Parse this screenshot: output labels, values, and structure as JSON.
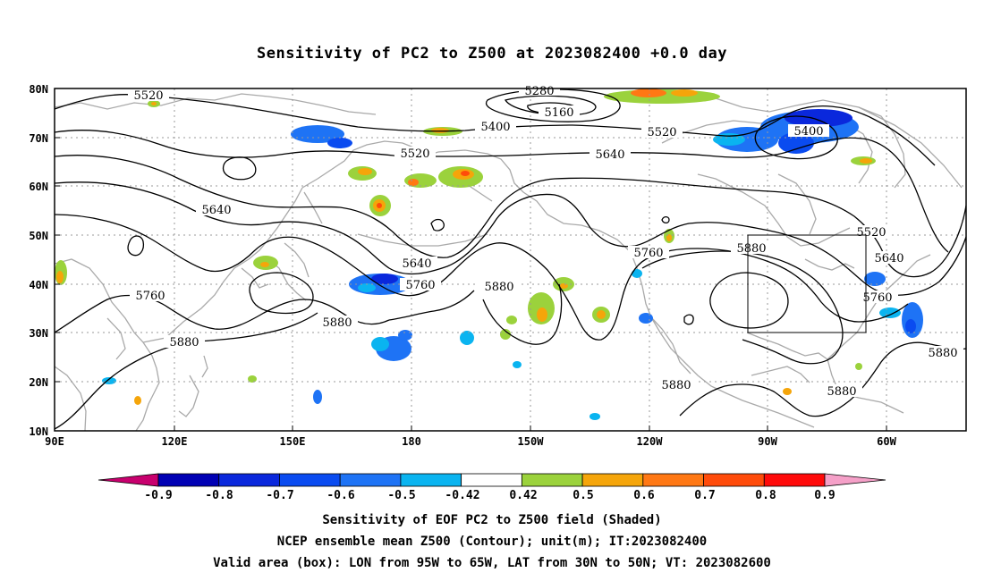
{
  "title": "Sensitivity of PC2 to Z500 at 2023082400 +0.0 day",
  "lat_labels": [
    "80N",
    "70N",
    "60N",
    "50N",
    "40N",
    "30N",
    "20N",
    "10N"
  ],
  "lon_labels": [
    "90E",
    "120E",
    "150E",
    "180",
    "150W",
    "120W",
    "90W",
    "60W"
  ],
  "contour_labels": [
    "5520",
    "5400",
    "5160",
    "5280",
    "5400",
    "5520",
    "5640",
    "5520",
    "5640",
    "5760",
    "5640",
    "5880",
    "5880",
    "5760",
    "5520",
    "5640",
    "5760",
    "5880",
    "5880",
    "5880",
    "5760",
    "5880",
    "5880"
  ],
  "colorbar": {
    "labels": [
      "-0.9",
      "-0.8",
      "-0.7",
      "-0.6",
      "-0.5",
      "-0.42",
      "0.42",
      "0.5",
      "0.6",
      "0.7",
      "0.8",
      "0.9"
    ],
    "colors": [
      "#c8006e",
      "#0000b4",
      "#0a28dc",
      "#0a4bf0",
      "#1e73f5",
      "#0ab4f0",
      "#ffffff",
      "#9bd23c",
      "#f5a50a",
      "#ff7814",
      "#ff4b0a",
      "#ff0a0a",
      "#f5a0c8"
    ]
  },
  "captions": [
    "Sensitivity of EOF PC2 to Z500 field (Shaded)",
    "NCEP ensemble mean Z500 (Contour); unit(m); IT:2023082400",
    "Valid area (box): LON from 95W to 65W, LAT from 30N to 50N; VT: 2023082600"
  ]
}
